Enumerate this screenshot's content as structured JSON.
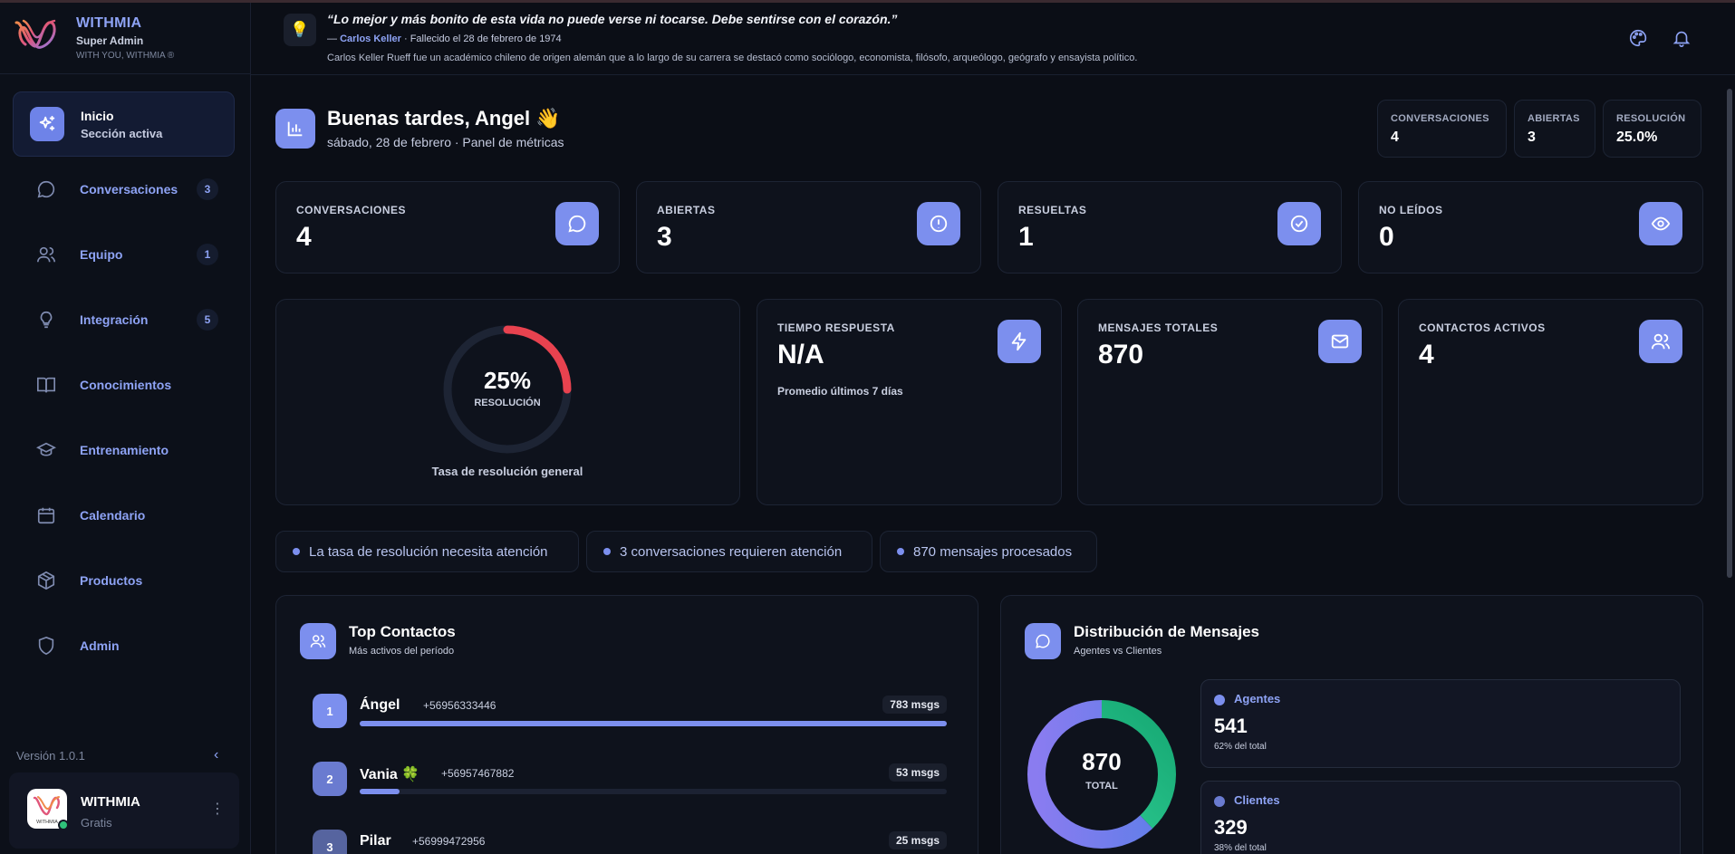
{
  "brand": {
    "name": "WITHMIA",
    "role": "Super Admin",
    "tagline": "WITH YOU, WITHMIA ®"
  },
  "sidebar": {
    "items": [
      {
        "label": "Inicio",
        "sub": "Sección activa",
        "icon": "sparkles-icon",
        "badge": ""
      },
      {
        "label": "Conversaciones",
        "icon": "chat-icon",
        "badge": "3"
      },
      {
        "label": "Equipo",
        "icon": "users-icon",
        "badge": "1"
      },
      {
        "label": "Integración",
        "icon": "lightbulb-icon",
        "badge": "5"
      },
      {
        "label": "Conocimientos",
        "icon": "book-icon",
        "badge": ""
      },
      {
        "label": "Entrenamiento",
        "icon": "graduation-cap-icon",
        "badge": ""
      },
      {
        "label": "Calendario",
        "icon": "calendar-icon",
        "badge": ""
      },
      {
        "label": "Productos",
        "icon": "box-icon",
        "badge": ""
      },
      {
        "label": "Admin",
        "icon": "shield-icon",
        "badge": ""
      }
    ],
    "version": "Versión 1.0.1",
    "user": {
      "name": "WITHMIA",
      "plan": "Gratis",
      "avatar_text": "WITHMIA"
    }
  },
  "topbar": {
    "quote": "“Lo mejor y más bonito de esta vida no puede verse ni tocarse. Debe sentirse con el corazón.”",
    "author_prefix": "— ",
    "author": "Carlos Keller",
    "author_meta": " · Fallecido el 28 de febrero de 1974",
    "bio": "Carlos Keller Rueff fue un académico chileno de origen alemán que a lo largo de su carrera se destacó como sociólogo, economista, filósofo, arqueólogo, geógrafo y ensayista político."
  },
  "header": {
    "greeting": "Buenas tardes, Angel 👋",
    "subtitle": "sábado, 28 de febrero · Panel de métricas",
    "mini_stats": [
      {
        "label": "CONVERSACIONES",
        "value": "4"
      },
      {
        "label": "ABIERTAS",
        "value": "3"
      },
      {
        "label": "RESOLUCIÓN",
        "value": "25.0%"
      }
    ]
  },
  "stats": [
    {
      "label": "CONVERSACIONES",
      "value": "4",
      "icon": "chat-icon"
    },
    {
      "label": "ABIERTAS",
      "value": "3",
      "icon": "alert-circle-icon"
    },
    {
      "label": "RESUELTAS",
      "value": "1",
      "icon": "check-circle-icon"
    },
    {
      "label": "NO LEÍDOS",
      "value": "0",
      "icon": "eye-icon"
    }
  ],
  "resolution": {
    "percent": 25,
    "percent_text": "25%",
    "label": "RESOLUCIÓN",
    "caption": "Tasa de resolución general"
  },
  "metrics": [
    {
      "label": "TIEMPO RESPUESTA",
      "value": "N/A",
      "note": "Promedio últimos 7 días",
      "icon": "lightning-icon"
    },
    {
      "label": "MENSAJES TOTALES",
      "value": "870",
      "note": "",
      "icon": "mail-icon"
    },
    {
      "label": "CONTACTOS ACTIVOS",
      "value": "4",
      "note": "",
      "icon": "users-icon"
    }
  ],
  "alerts": [
    "La tasa de resolución necesita atención",
    "3 conversaciones requieren atención",
    "870 mensajes procesados"
  ],
  "top_contacts": {
    "title": "Top Contactos",
    "subtitle": "Más activos del período",
    "items": [
      {
        "rank": "1",
        "name": "Ángel",
        "emoji": "",
        "phone": "+56956333446",
        "count": "783 msgs",
        "value": 783
      },
      {
        "rank": "2",
        "name": "Vania",
        "emoji": "🍀",
        "phone": "+56957467882",
        "count": "53 msgs",
        "value": 53
      },
      {
        "rank": "3",
        "name": "Pilar",
        "emoji": "",
        "phone": "+56999472956",
        "count": "25 msgs",
        "value": 25
      }
    ]
  },
  "distribution": {
    "title": "Distribución de Mensajes",
    "subtitle": "Agentes vs Clientes",
    "total": "870",
    "total_label": "TOTAL",
    "colors": {
      "agentes": "#7c8fee",
      "clientes": "#22c48a"
    },
    "items": [
      {
        "name": "Agentes",
        "value": "541",
        "share": "62% del total",
        "fraction": 0.62
      },
      {
        "name": "Clientes",
        "value": "329",
        "share": "38% del total",
        "fraction": 0.38
      }
    ]
  }
}
